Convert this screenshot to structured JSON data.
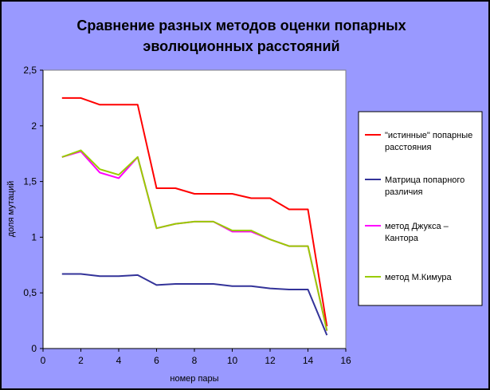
{
  "chart_data": {
    "type": "line",
    "title_lines": [
      "Сравнение разных методов оценки попарных",
      "эволюционных расстояний"
    ],
    "xlabel": "номер пары",
    "ylabel": "доля мутаций",
    "xlim": [
      0,
      16
    ],
    "ylim": [
      0,
      2.5
    ],
    "x_ticks": [
      0,
      2,
      4,
      6,
      8,
      10,
      12,
      14,
      16
    ],
    "x_tick_labels": [
      "0",
      "2",
      "4",
      "6",
      "8",
      "10",
      "12",
      "14",
      "16"
    ],
    "y_ticks": [
      0,
      0.5,
      1,
      1.5,
      2,
      2.5
    ],
    "y_tick_labels": [
      "0",
      "0,5",
      "1",
      "1,5",
      "2",
      "2,5"
    ],
    "grid": false,
    "legend_position": "right",
    "x": [
      1,
      2,
      3,
      4,
      5,
      6,
      7,
      8,
      9,
      10,
      11,
      12,
      13,
      14,
      15
    ],
    "series": [
      {
        "name_lines": [
          "\"истинные\" попарные",
          "расстояния"
        ],
        "color": "#ff0000",
        "values": [
          2.25,
          2.25,
          2.19,
          2.19,
          2.19,
          1.44,
          1.44,
          1.39,
          1.39,
          1.39,
          1.35,
          1.35,
          1.25,
          1.25,
          0.2
        ]
      },
      {
        "name_lines": [
          "Матрица попарного",
          "различия"
        ],
        "color": "#333399",
        "values": [
          0.67,
          0.67,
          0.65,
          0.65,
          0.66,
          0.57,
          0.58,
          0.58,
          0.58,
          0.56,
          0.56,
          0.54,
          0.53,
          0.53,
          0.12
        ]
      },
      {
        "name_lines": [
          "метод Джукса –",
          "Кантора"
        ],
        "color": "#ff00ff",
        "values": [
          1.72,
          1.77,
          1.58,
          1.53,
          1.72,
          1.08,
          1.12,
          1.14,
          1.14,
          1.05,
          1.05,
          0.98,
          0.92,
          0.92,
          0.16
        ]
      },
      {
        "name_lines": [
          "метод М.Кимура"
        ],
        "color": "#99cc00",
        "values": [
          1.72,
          1.78,
          1.61,
          1.56,
          1.72,
          1.08,
          1.12,
          1.14,
          1.14,
          1.06,
          1.06,
          0.98,
          0.92,
          0.92,
          0.16
        ]
      }
    ]
  },
  "colors": {
    "chart_background": "#9999ff",
    "plot_background": "#ffffff",
    "legend_background": "#ffffff"
  }
}
